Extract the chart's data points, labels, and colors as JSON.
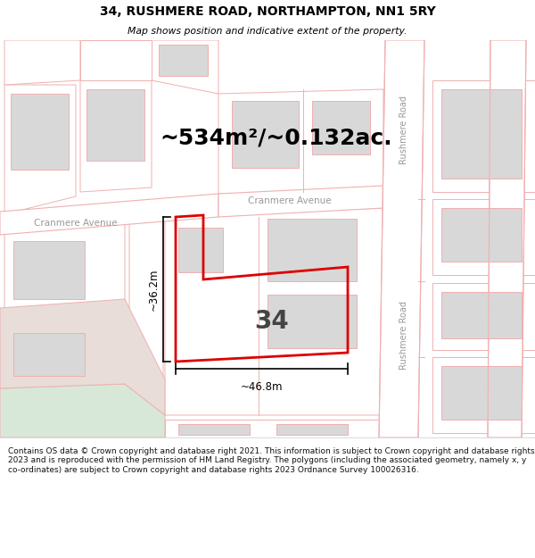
{
  "title_line1": "34, RUSHMERE ROAD, NORTHAMPTON, NN1 5RY",
  "title_line2": "Map shows position and indicative extent of the property.",
  "area_text": "~534m²/~0.132ac.",
  "number_label": "34",
  "dim_width": "~46.8m",
  "dim_height": "~36.2m",
  "road_label_left": "Cranmere Avenue",
  "road_label_right": "Cranmere Avenue",
  "road_label_vert1": "Rushmere Road",
  "road_label_vert2": "Rushmere Road",
  "footer_text": "Contains OS data © Crown copyright and database right 2021. This information is subject to Crown copyright and database rights 2023 and is reproduced with the permission of HM Land Registry. The polygons (including the associated geometry, namely x, y co-ordinates) are subject to Crown copyright and database rights 2023 Ordnance Survey 100026316.",
  "bg_color": "#f2f2f2",
  "road_color": "#ffffff",
  "road_line_color": "#f0b0b0",
  "property_line_color": "#dd0000",
  "building_fill": "#d8d8d8",
  "building_line": "#f0b0b0",
  "plot_fill": "#ffffff",
  "plot_line": "#f0b0b0",
  "green_color": "#d8e8d8",
  "beige_color": "#e8ddd8"
}
